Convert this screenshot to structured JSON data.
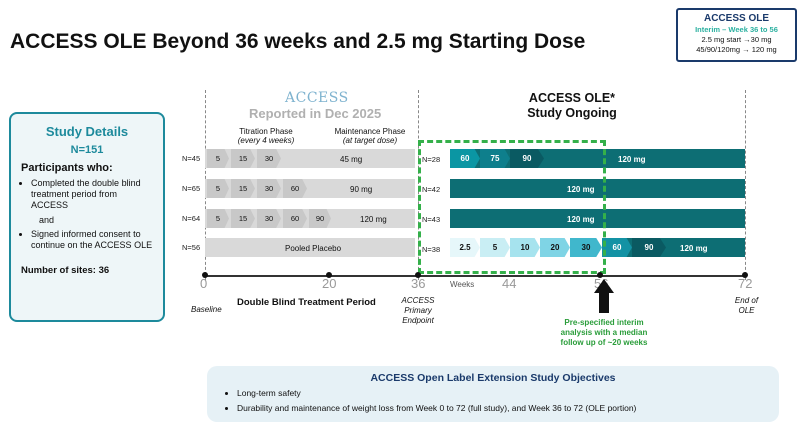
{
  "title": "ACCESS OLE Beyond 36 weeks and 2.5 mg Starting Dose",
  "legend": {
    "heading": "ACCESS OLE",
    "line1": "Interim – Week 36 to 56",
    "line2": "2.5 mg start →30 mg",
    "line3": "45/90/120mg → 120 mg"
  },
  "study_details": {
    "heading": "Study Details",
    "n": "N=151",
    "participants": "Participants who:",
    "bullet1": "Completed the double blind treatment period from ACCESS",
    "and": "and",
    "bullet2": "Signed informed consent to continue on the ACCESS OLE",
    "sites": "Number of sites: 36"
  },
  "access_logo": "ACCESS",
  "reported": "Reported in Dec 2025",
  "ole_heading": {
    "line1": "ACCESS OLE*",
    "line2": "Study Ongoing"
  },
  "phases": {
    "titration": "Titration Phase",
    "titration_sub": "(every 4 weeks)",
    "maintenance": "Maintenance Phase",
    "maintenance_sub": "(at target dose)"
  },
  "rows": [
    {
      "n": "N=45",
      "steps": [
        "5",
        "15",
        "30"
      ],
      "dose": "45 mg",
      "ole_n": "N=28",
      "ole_steps": [
        "60",
        "75",
        "90"
      ],
      "ole_dose": "120 mg"
    },
    {
      "n": "N=65",
      "steps": [
        "5",
        "15",
        "30",
        "60"
      ],
      "dose": "90 mg",
      "ole_n": "N=42",
      "ole_steps": [],
      "ole_dose": "120 mg"
    },
    {
      "n": "N=64",
      "steps": [
        "5",
        "15",
        "30",
        "60",
        "90"
      ],
      "dose": "120 mg",
      "ole_n": "N=43",
      "ole_steps": [],
      "ole_dose": "120 mg"
    },
    {
      "n": "N=56",
      "steps": [],
      "dose": "Pooled Placebo",
      "ole_n": "N=38",
      "ole_steps": [
        "2.5",
        "5",
        "10",
        "20",
        "30",
        "60",
        "90"
      ],
      "ole_dose": "120 mg"
    }
  ],
  "axis": {
    "ticks": [
      "0",
      "20",
      "36",
      "44",
      "56",
      "72"
    ],
    "weeks": "Weeks",
    "baseline": "Baseline",
    "double_blind": "Double Blind Treatment Period",
    "primary": "ACCESS Primary Endpoint",
    "end_ole": "End of OLE"
  },
  "interim_note": "Pre-specified interim analysis with a median follow up of ~20 weeks",
  "objectives": {
    "heading": "ACCESS Open Label Extension Study Objectives",
    "items": [
      "Long-term safety",
      "Durability and maintenance of weight loss from Week 0 to 72 (full study), and Week 36 to 72 (OLE portion)"
    ]
  },
  "colors": {
    "teal_dark": "#0d6e74",
    "teal_mid": "#0e8a92",
    "navy": "#1a3a6b",
    "green": "#34b04a",
    "gray": "#d9d9d9"
  }
}
